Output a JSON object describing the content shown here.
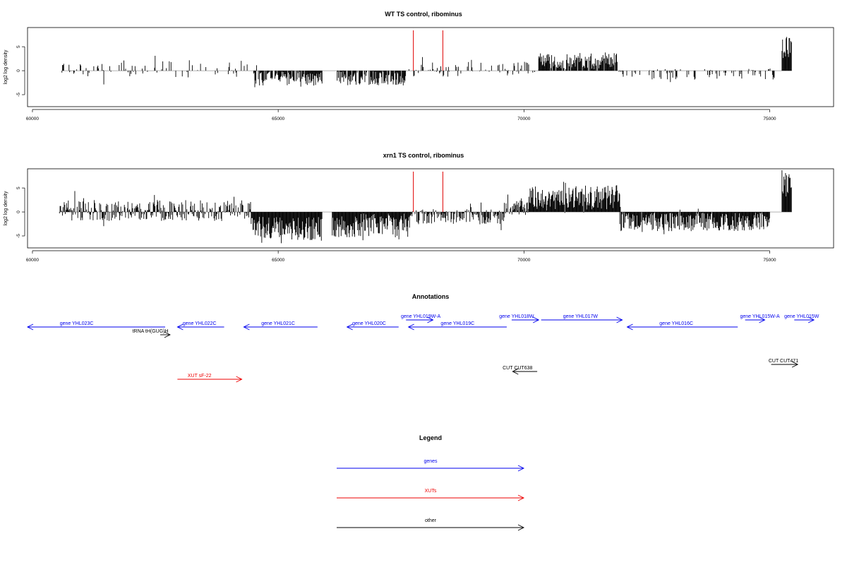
{
  "chart_data": [
    {
      "type": "bar",
      "title": "WT TS control, ribominus",
      "ylabel": "log2 log density",
      "xlim": [
        59900,
        76300
      ],
      "ylim": [
        -7.5,
        9
      ],
      "xticks": [
        60000,
        65000,
        70000,
        75000
      ],
      "yticks": [
        -5,
        0,
        5
      ],
      "markers": [
        67750,
        68350
      ],
      "colors": {
        "bars": "#000000",
        "markers": "#e00000",
        "baseline": "#9a9a9a"
      },
      "segments": [
        {
          "from": 60600,
          "to": 64500,
          "mean": 0.4,
          "amp": 1.8,
          "density": 0.25
        },
        {
          "from": 64500,
          "to": 65900,
          "mean": -1.8,
          "amp": 1.6,
          "density": 0.9
        },
        {
          "from": 66200,
          "to": 67600,
          "mean": -1.6,
          "amp": 1.5,
          "density": 0.85
        },
        {
          "from": 67600,
          "to": 69700,
          "mean": 0.2,
          "amp": 1.5,
          "density": 0.3
        },
        {
          "from": 69700,
          "to": 70300,
          "mean": 0.6,
          "amp": 1.6,
          "density": 0.35
        },
        {
          "from": 70300,
          "to": 71900,
          "mean": 2.0,
          "amp": 1.7,
          "density": 0.9
        },
        {
          "from": 71900,
          "to": 75100,
          "mean": -0.7,
          "amp": 1.2,
          "density": 0.3
        },
        {
          "from": 75250,
          "to": 75450,
          "mean": 4.8,
          "amp": 2.5,
          "density": 1.0
        }
      ],
      "seed": 11
    },
    {
      "type": "bar",
      "title": "xrn1 TS control, ribominus",
      "ylabel": "log2 log density",
      "xlim": [
        59900,
        76300
      ],
      "ylim": [
        -7.5,
        9
      ],
      "xticks": [
        60000,
        65000,
        70000,
        75000
      ],
      "yticks": [
        -5,
        0,
        5
      ],
      "markers": [
        67750,
        68350
      ],
      "colors": {
        "bars": "#000000",
        "markers": "#e00000",
        "baseline": "#9a9a9a"
      },
      "segments": [
        {
          "from": 60550,
          "to": 64450,
          "mean": 0.3,
          "amp": 2.2,
          "density": 0.85
        },
        {
          "from": 64450,
          "to": 65900,
          "mean": -3.5,
          "amp": 2.5,
          "density": 1.0
        },
        {
          "from": 66100,
          "to": 67700,
          "mean": -2.8,
          "amp": 2.5,
          "density": 1.0
        },
        {
          "from": 67700,
          "to": 69600,
          "mean": -1.0,
          "amp": 1.6,
          "density": 0.75
        },
        {
          "from": 69600,
          "to": 70100,
          "mean": 0.8,
          "amp": 1.5,
          "density": 0.8
        },
        {
          "from": 70100,
          "to": 71950,
          "mean": 3.0,
          "amp": 2.5,
          "density": 1.0
        },
        {
          "from": 71950,
          "to": 75000,
          "mean": -2.0,
          "amp": 2.0,
          "density": 1.0
        },
        {
          "from": 75250,
          "to": 75450,
          "mean": 5.5,
          "amp": 2.7,
          "density": 1.0
        }
      ],
      "seed": 23
    }
  ],
  "annotations": {
    "title": "Annotations",
    "features": [
      {
        "label": "gene YHL023C",
        "kind": "gene",
        "from": 62700,
        "to": 59900,
        "row": 2,
        "label_pos": 60900
      },
      {
        "label": "tRNA tH(GUG)H",
        "kind": "other",
        "from": 62600,
        "to": 62800,
        "row": 3,
        "label_pos": 62400
      },
      {
        "label": "gene YHL022C",
        "kind": "gene",
        "from": 63900,
        "to": 62950,
        "row": 2,
        "label_pos": 63400
      },
      {
        "label": "gene YHL021C",
        "kind": "gene",
        "from": 65800,
        "to": 64300,
        "row": 2,
        "label_pos": 65000
      },
      {
        "label": "gene YHL020C",
        "kind": "gene",
        "from": 67450,
        "to": 66400,
        "row": 2,
        "label_pos": 66850
      },
      {
        "label": "gene YHL019W-A",
        "kind": "gene",
        "from": 67600,
        "to": 68150,
        "row": 1,
        "label_pos": 67900
      },
      {
        "label": "gene YHL019C",
        "kind": "gene",
        "from": 69650,
        "to": 67650,
        "row": 2,
        "label_pos": 68650
      },
      {
        "label": "gene YHL018W",
        "kind": "gene",
        "from": 69750,
        "to": 70300,
        "row": 1,
        "label_pos": 69850
      },
      {
        "label": "gene YHL017W",
        "kind": "gene",
        "from": 70350,
        "to": 72000,
        "row": 1,
        "label_pos": 71150
      },
      {
        "label": "gene YHL016C",
        "kind": "gene",
        "from": 74350,
        "to": 72100,
        "row": 2,
        "label_pos": 73100
      },
      {
        "label": "gene YHL015W-A",
        "kind": "gene",
        "from": 74500,
        "to": 74900,
        "row": 1,
        "label_pos": 74800
      },
      {
        "label": "gene YHL015W",
        "kind": "gene",
        "from": 75500,
        "to": 75900,
        "row": 1,
        "label_pos": 75650
      },
      {
        "label": "CUT CUT638",
        "kind": "other",
        "from": 70270,
        "to": 69770,
        "row": 5,
        "label_pos": 69870
      },
      {
        "label": "CUT CUT471",
        "kind": "other",
        "from": 75030,
        "to": 75570,
        "row": 4,
        "label_pos": 75280
      },
      {
        "label": "XUT sF-22",
        "kind": "xut",
        "from": 62950,
        "to": 64260,
        "row": 6,
        "label_pos": 63400
      }
    ]
  },
  "legend": {
    "title": "Legend",
    "items": [
      {
        "label": "genes",
        "kind": "gene"
      },
      {
        "label": "XUTs",
        "kind": "xut"
      },
      {
        "label": "other",
        "kind": "other"
      }
    ]
  },
  "colors": {
    "gene": "#0000ee",
    "xut": "#ee0000",
    "other": "#000000"
  }
}
